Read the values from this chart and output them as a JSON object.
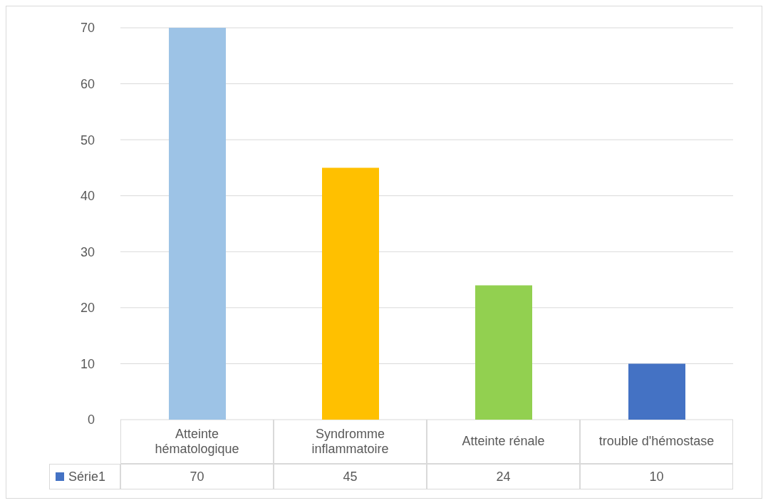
{
  "chart_data": {
    "type": "bar",
    "categories": [
      "Atteinte hématologique",
      "Syndromme inflammatoire",
      "Atteinte rénale",
      "trouble d'hémostase"
    ],
    "series": [
      {
        "name": "Série1",
        "color": "#4472c4",
        "colors": [
          "#9dc3e6",
          "#ffc000",
          "#92d050",
          "#4472c4"
        ],
        "values": [
          70,
          45,
          24,
          10
        ]
      }
    ],
    "ylim": [
      0,
      70
    ],
    "yticks": [
      0,
      10,
      20,
      30,
      40,
      50,
      60,
      70
    ],
    "grid": "y",
    "data_labels": true,
    "legend": "bottom"
  }
}
